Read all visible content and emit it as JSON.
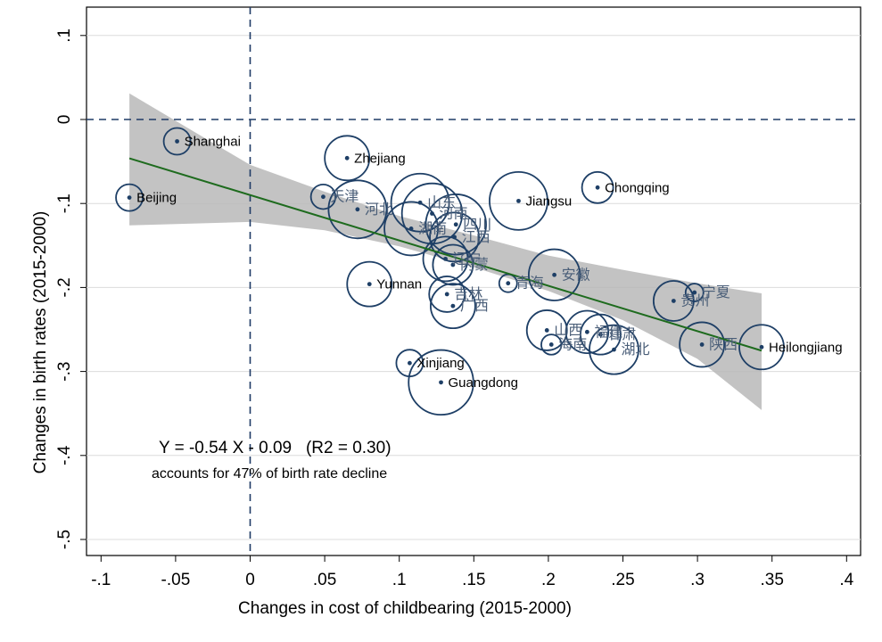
{
  "chart_data": {
    "type": "scatter",
    "xlabel": "Changes in cost of childbearing (2015-2000)",
    "ylabel": "Changes in birth rates (2015-2000)",
    "xlim": [
      -0.1,
      0.4
    ],
    "ylim": [
      -0.5,
      0.1
    ],
    "xticks": [
      -0.1,
      -0.05,
      0,
      0.05,
      0.1,
      0.15,
      0.2,
      0.25,
      0.3,
      0.35,
      0.4
    ],
    "xtick_labels": [
      "-.1",
      "-.05",
      "0",
      ".05",
      ".1",
      ".15",
      ".2",
      ".25",
      ".3",
      ".35",
      ".4"
    ],
    "yticks": [
      0.1,
      0,
      -0.1,
      -0.2,
      -0.3,
      -0.4,
      -0.5
    ],
    "ytick_labels": [
      ".1",
      "0",
      "-.1",
      "-.2",
      "-.3",
      "-.4",
      "-.5"
    ],
    "grid": "horizontal",
    "reference_lines": {
      "x": 0,
      "y": 0
    },
    "fit": {
      "slope": -0.54,
      "intercept": -0.09,
      "r2": 0.3,
      "x_range": [
        -0.081,
        0.343
      ]
    },
    "confidence_band": [
      {
        "x": -0.081,
        "lo": -0.126,
        "hi": 0.031
      },
      {
        "x": 0.0,
        "lo": -0.122,
        "hi": -0.054
      },
      {
        "x": 0.05,
        "lo": -0.132,
        "hi": -0.086
      },
      {
        "x": 0.1,
        "lo": -0.151,
        "hi": -0.115
      },
      {
        "x": 0.15,
        "lo": -0.176,
        "hi": -0.138
      },
      {
        "x": 0.2,
        "lo": -0.204,
        "hi": -0.162
      },
      {
        "x": 0.25,
        "lo": -0.239,
        "hi": -0.179
      },
      {
        "x": 0.3,
        "lo": -0.285,
        "hi": -0.195
      },
      {
        "x": 0.343,
        "lo": -0.346,
        "hi": -0.207
      }
    ],
    "annotations": {
      "equation": "Y = -0.54 X - 0.09   (R2 = 0.30)",
      "subtitle": "accounts for 47% of birth rate decline"
    },
    "points": [
      {
        "label": "Shanghai",
        "x": -0.049,
        "y": -0.026,
        "w": 0.6
      },
      {
        "label": "Beijing",
        "x": -0.081,
        "y": -0.093,
        "w": 0.6
      },
      {
        "label": "Zhejiang",
        "x": 0.065,
        "y": -0.046,
        "w": 1.0
      },
      {
        "label": "天津",
        "x": 0.049,
        "y": -0.092,
        "w": 0.55
      },
      {
        "label": "河北",
        "x": 0.072,
        "y": -0.107,
        "w": 1.3
      },
      {
        "label": "Jiangsu",
        "x": 0.18,
        "y": -0.097,
        "w": 1.3
      },
      {
        "label": "Chongqing",
        "x": 0.233,
        "y": -0.081,
        "w": 0.7
      },
      {
        "label": "山东",
        "x": 0.114,
        "y": -0.099,
        "w": 1.3
      },
      {
        "label": "河南",
        "x": 0.122,
        "y": -0.112,
        "w": 1.35
      },
      {
        "label": "四川",
        "x": 0.138,
        "y": -0.125,
        "w": 1.35
      },
      {
        "label": "湖南",
        "x": 0.108,
        "y": -0.13,
        "w": 1.2
      },
      {
        "label": "江西",
        "x": 0.137,
        "y": -0.14,
        "w": 1.1
      },
      {
        "label": "辽宁",
        "x": 0.131,
        "y": -0.166,
        "w": 1.0
      },
      {
        "label": "内蒙",
        "x": 0.136,
        "y": -0.173,
        "w": 0.9
      },
      {
        "label": "Yunnan",
        "x": 0.08,
        "y": -0.196,
        "w": 1.0
      },
      {
        "label": "吉林",
        "x": 0.132,
        "y": -0.208,
        "w": 0.8
      },
      {
        "label": "广西",
        "x": 0.136,
        "y": -0.222,
        "w": 1.0
      },
      {
        "label": "青海",
        "x": 0.173,
        "y": -0.195,
        "w": 0.4
      },
      {
        "label": "安徽",
        "x": 0.204,
        "y": -0.185,
        "w": 1.15
      },
      {
        "label": "贵州",
        "x": 0.284,
        "y": -0.216,
        "w": 0.9
      },
      {
        "label": "宁夏",
        "x": 0.298,
        "y": -0.206,
        "w": 0.4
      },
      {
        "label": "山西",
        "x": 0.199,
        "y": -0.251,
        "w": 0.9
      },
      {
        "label": "海南",
        "x": 0.202,
        "y": -0.268,
        "w": 0.45
      },
      {
        "label": "福建",
        "x": 0.226,
        "y": -0.253,
        "w": 0.95
      },
      {
        "label": "甘肃",
        "x": 0.235,
        "y": -0.256,
        "w": 0.9
      },
      {
        "label": "湖北",
        "x": 0.244,
        "y": -0.274,
        "w": 1.1
      },
      {
        "label": "陕西",
        "x": 0.303,
        "y": -0.268,
        "w": 1.0
      },
      {
        "label": "Heilongjiang",
        "x": 0.343,
        "y": -0.271,
        "w": 1.0
      },
      {
        "label": "Xinjiang",
        "x": 0.107,
        "y": -0.29,
        "w": 0.6
      },
      {
        "label": "Guangdong",
        "x": 0.128,
        "y": -0.313,
        "w": 1.45
      }
    ]
  }
}
